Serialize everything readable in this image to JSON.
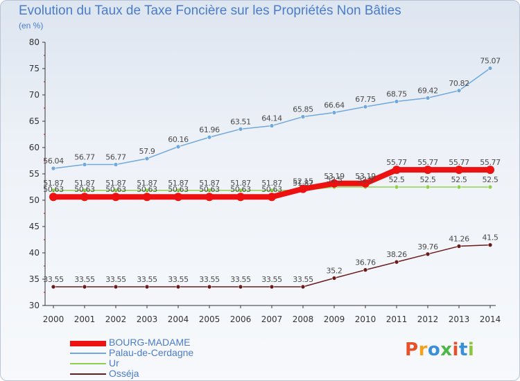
{
  "page": {
    "title": "Evolution du Taux de Taxe Foncière sur les Propriétés Non Bâties",
    "unit_label": "(en %)"
  },
  "logo": {
    "text": "Proxiti",
    "colors": [
      "#e8502a",
      "#f2a21c",
      "#3a8fd9",
      "#4cb848",
      "#e8502a",
      "#3a8fd9",
      "#8cc63f"
    ]
  },
  "chart_data": {
    "type": "line",
    "title": "Evolution du Taux de Taxe Foncière sur les Propriétés Non Bâties",
    "ylabel": "(en %)",
    "xlabel": "",
    "x": [
      "2000",
      "2001",
      "2002",
      "2003",
      "2004",
      "2005",
      "2006",
      "2007",
      "2008",
      "2009",
      "2010",
      "2011",
      "2012",
      "2013",
      "2014"
    ],
    "ylim": [
      30,
      80
    ],
    "yticks": [
      30,
      35,
      40,
      45,
      50,
      55,
      60,
      65,
      70,
      75,
      80
    ],
    "grid": false,
    "legend_position": "bottom-left",
    "series": [
      {
        "name": "Osséja",
        "color": "#6b1a1a",
        "values": [
          33.55,
          33.55,
          33.55,
          33.55,
          33.55,
          33.55,
          33.55,
          33.55,
          33.55,
          35.2,
          36.76,
          38.26,
          39.76,
          41.26,
          41.5
        ],
        "labels": [
          "33.55",
          "33.55",
          "33.55",
          "33.55",
          "33.55",
          "33.55",
          "33.55",
          "33.55",
          "33.55",
          "35.2",
          "36.76",
          "38.26",
          "39.76",
          "41.26",
          "41.5"
        ]
      },
      {
        "name": "Ur",
        "color": "#8fd14f",
        "values": [
          51.87,
          51.87,
          51.87,
          51.87,
          51.87,
          51.87,
          51.87,
          51.87,
          51.87,
          52.5,
          52.5,
          52.5,
          52.5,
          52.5,
          52.5
        ],
        "labels": [
          "51.87",
          "51.87",
          "51.87",
          "51.87",
          "51.87",
          "51.87",
          "51.87",
          "51.87",
          "51.87",
          "52.5",
          "52.5",
          "52.5",
          "52.5",
          "52.5",
          "52.5"
        ]
      },
      {
        "name": "Palau-de-Cerdagne",
        "color": "#6fa8dc",
        "values": [
          56.04,
          56.77,
          56.77,
          57.9,
          60.16,
          61.96,
          63.51,
          64.14,
          65.85,
          66.64,
          67.75,
          68.75,
          69.42,
          70.82,
          75.07
        ],
        "labels": [
          "56.04",
          "56.77",
          "56.77",
          "57.9",
          "60.16",
          "61.96",
          "63.51",
          "64.14",
          "65.85",
          "66.64",
          "67.75",
          "68.75",
          "69.42",
          "70.82",
          "75.07"
        ]
      },
      {
        "name": "BOURG-MADAME",
        "color": "#ee1111",
        "values": [
          50.63,
          50.63,
          50.63,
          50.63,
          50.63,
          50.63,
          50.63,
          50.63,
          52.15,
          53.19,
          53.19,
          55.77,
          55.77,
          55.77,
          55.77
        ],
        "labels": [
          "50.63",
          "50.63",
          "50.63",
          "50.63",
          "50.63",
          "50.63",
          "50.63",
          "50.63",
          "52.15",
          "53.19",
          "53.19",
          "55.77",
          "55.77",
          "55.77",
          "55.77"
        ]
      }
    ],
    "legend": [
      "BOURG-MADAME",
      "Palau-de-Cerdagne",
      "Ur",
      "Osséja"
    ]
  }
}
